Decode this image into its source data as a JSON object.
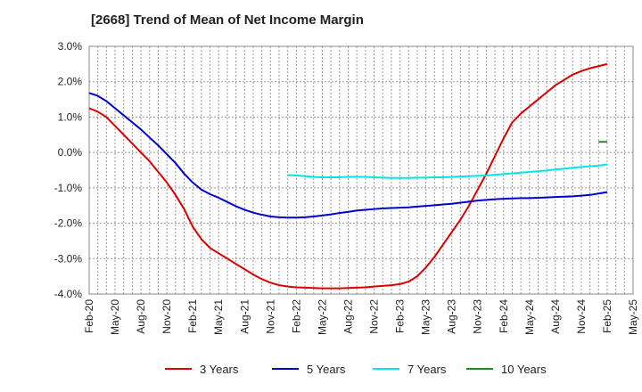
{
  "chart_data": {
    "type": "line",
    "title": "[2668]  Trend of Mean of Net Income Margin",
    "xlabel": "",
    "ylabel": "",
    "ylim": [
      -4.0,
      3.0
    ],
    "y_ticks": [
      "3.0%",
      "2.0%",
      "1.0%",
      "0.0%",
      "-1.0%",
      "-2.0%",
      "-3.0%",
      "-4.0%"
    ],
    "y_tick_values": [
      3,
      2,
      1,
      0,
      -1,
      -2,
      -3,
      -4
    ],
    "x_tick_labels": [
      "Feb-20",
      "May-20",
      "Aug-20",
      "Nov-20",
      "Feb-21",
      "May-21",
      "Aug-21",
      "Nov-21",
      "Feb-22",
      "May-22",
      "Aug-22",
      "Nov-22",
      "Feb-23",
      "May-23",
      "Aug-23",
      "Nov-23",
      "Feb-24",
      "May-24",
      "Aug-24",
      "Nov-24",
      "Feb-25",
      "May-25"
    ],
    "x": [
      "Feb-20",
      "Mar-20",
      "Apr-20",
      "May-20",
      "Jun-20",
      "Jul-20",
      "Aug-20",
      "Sep-20",
      "Oct-20",
      "Nov-20",
      "Dec-20",
      "Jan-21",
      "Feb-21",
      "Mar-21",
      "Apr-21",
      "May-21",
      "Jun-21",
      "Jul-21",
      "Aug-21",
      "Sep-21",
      "Oct-21",
      "Nov-21",
      "Dec-21",
      "Jan-22",
      "Feb-22",
      "Mar-22",
      "Apr-22",
      "May-22",
      "Jun-22",
      "Jul-22",
      "Aug-22",
      "Sep-22",
      "Oct-22",
      "Nov-22",
      "Dec-22",
      "Jan-23",
      "Feb-23",
      "Mar-23",
      "Apr-23",
      "May-23",
      "Jun-23",
      "Jul-23",
      "Aug-23",
      "Sep-23",
      "Oct-23",
      "Nov-23",
      "Dec-23",
      "Jan-24",
      "Feb-24",
      "Mar-24",
      "Apr-24",
      "May-24",
      "Jun-24",
      "Jul-24",
      "Aug-24",
      "Sep-24",
      "Oct-24",
      "Nov-24",
      "Dec-24",
      "Jan-25",
      "Feb-25"
    ],
    "grid": true,
    "legend_position": "bottom",
    "series": [
      {
        "name": "3 Years",
        "color": "#dd0000",
        "values": [
          1.25,
          1.15,
          1.0,
          0.75,
          0.5,
          0.25,
          0.0,
          -0.25,
          -0.55,
          -0.85,
          -1.2,
          -1.6,
          -2.1,
          -2.45,
          -2.7,
          -2.85,
          -3.0,
          -3.15,
          -3.3,
          -3.45,
          -3.58,
          -3.68,
          -3.75,
          -3.79,
          -3.81,
          -3.82,
          -3.83,
          -3.84,
          -3.84,
          -3.84,
          -3.83,
          -3.82,
          -3.81,
          -3.79,
          -3.77,
          -3.75,
          -3.72,
          -3.65,
          -3.5,
          -3.25,
          -2.95,
          -2.6,
          -2.25,
          -1.9,
          -1.5,
          -1.05,
          -0.6,
          -0.1,
          0.4,
          0.85,
          1.1,
          1.3,
          1.5,
          1.7,
          1.9,
          2.05,
          2.2,
          2.3,
          2.38,
          2.44,
          2.5
        ]
      },
      {
        "name": "5 Years",
        "color": "#0000cc",
        "values": [
          1.68,
          1.6,
          1.45,
          1.25,
          1.05,
          0.85,
          0.65,
          0.42,
          0.2,
          -0.05,
          -0.3,
          -0.6,
          -0.85,
          -1.05,
          -1.18,
          -1.28,
          -1.4,
          -1.52,
          -1.62,
          -1.7,
          -1.76,
          -1.81,
          -1.83,
          -1.84,
          -1.84,
          -1.83,
          -1.81,
          -1.78,
          -1.75,
          -1.71,
          -1.68,
          -1.64,
          -1.62,
          -1.6,
          -1.58,
          -1.57,
          -1.56,
          -1.55,
          -1.53,
          -1.51,
          -1.49,
          -1.47,
          -1.45,
          -1.42,
          -1.39,
          -1.36,
          -1.34,
          -1.32,
          -1.31,
          -1.3,
          -1.29,
          -1.29,
          -1.28,
          -1.27,
          -1.26,
          -1.25,
          -1.24,
          -1.22,
          -1.2,
          -1.16,
          -1.12
        ]
      },
      {
        "name": "7 Years",
        "color": "#00e5e5",
        "values": [
          null,
          null,
          null,
          null,
          null,
          null,
          null,
          null,
          null,
          null,
          null,
          null,
          null,
          null,
          null,
          null,
          null,
          null,
          null,
          null,
          null,
          null,
          null,
          -0.64,
          -0.65,
          -0.67,
          -0.69,
          -0.7,
          -0.7,
          -0.7,
          -0.69,
          -0.69,
          -0.69,
          -0.7,
          -0.71,
          -0.72,
          -0.72,
          -0.72,
          -0.71,
          -0.71,
          -0.7,
          -0.7,
          -0.69,
          -0.68,
          -0.67,
          -0.66,
          -0.65,
          -0.63,
          -0.61,
          -0.59,
          -0.57,
          -0.55,
          -0.53,
          -0.51,
          -0.48,
          -0.46,
          -0.43,
          -0.41,
          -0.39,
          -0.37,
          -0.34
        ]
      },
      {
        "name": "10 Years",
        "color": "#228b22",
        "values": [
          null,
          null,
          null,
          null,
          null,
          null,
          null,
          null,
          null,
          null,
          null,
          null,
          null,
          null,
          null,
          null,
          null,
          null,
          null,
          null,
          null,
          null,
          null,
          null,
          null,
          null,
          null,
          null,
          null,
          null,
          null,
          null,
          null,
          null,
          null,
          null,
          null,
          null,
          null,
          null,
          null,
          null,
          null,
          null,
          null,
          null,
          null,
          null,
          null,
          null,
          null,
          null,
          null,
          null,
          null,
          null,
          null,
          null,
          null,
          0.3,
          0.3
        ]
      }
    ]
  }
}
